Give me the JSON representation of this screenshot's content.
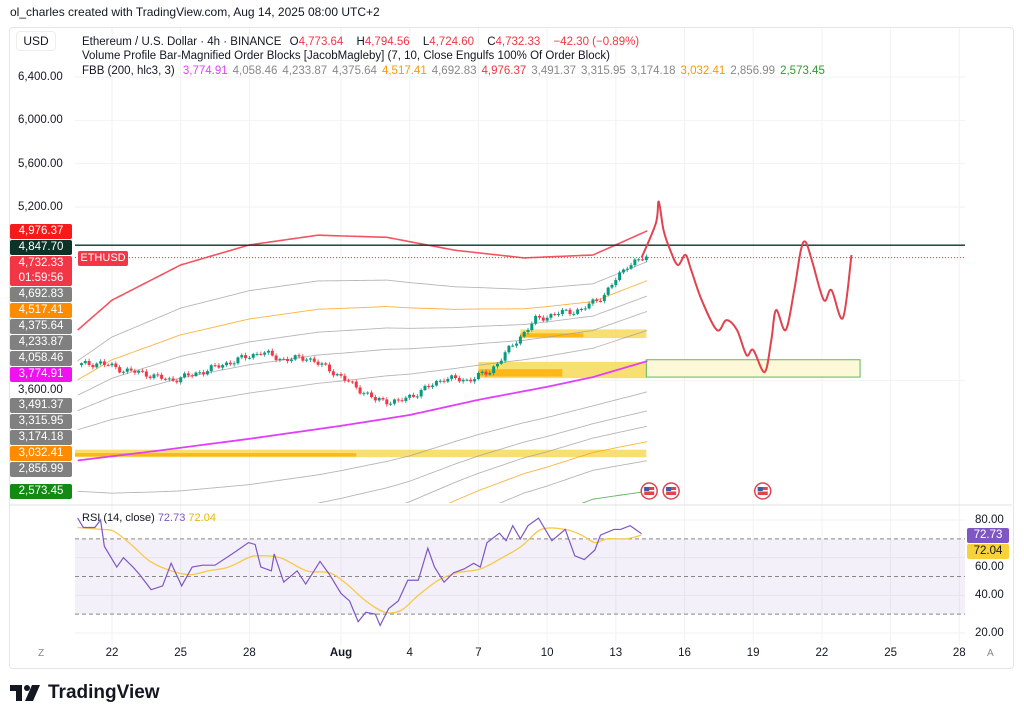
{
  "credit": "ol_charles created with TradingView.com, Aug 14, 2025 08:00 UTC+2",
  "currency": "USD",
  "legend": {
    "symbol": "Ethereum / U.S. Dollar · 4h · BINANCE",
    "o_label": "O",
    "o": "4,773.64",
    "h_label": "H",
    "h": "4,794.56",
    "l_label": "L",
    "l": "4,724.60",
    "c_label": "C",
    "c": "4,732.33",
    "change": "−42.30 (−0.89%)",
    "indicator2": "Volume Profile Bar-Magnified Order Blocks [JacobMagleby] (7, 10, Close Engulfs 100% Of Order Block)",
    "fbb_label": "FBB (200, hlc3, 3)",
    "fbb_values": [
      {
        "v": "3,774.91",
        "color": "#e040fb"
      },
      {
        "v": "4,058.46",
        "color": "#888888"
      },
      {
        "v": "4,233.87",
        "color": "#888888"
      },
      {
        "v": "4,375.64",
        "color": "#888888"
      },
      {
        "v": "4,517.41",
        "color": "#ff9800"
      },
      {
        "v": "4,692.83",
        "color": "#888888"
      },
      {
        "v": "4,976.37",
        "color": "#f23645"
      },
      {
        "v": "3,491.37",
        "color": "#888888"
      },
      {
        "v": "3,315.95",
        "color": "#888888"
      },
      {
        "v": "3,174.18",
        "color": "#888888"
      },
      {
        "v": "3,032.41",
        "color": "#ff9800"
      },
      {
        "v": "2,856.99",
        "color": "#888888"
      },
      {
        "v": "2,573.45",
        "color": "#2e9b2e"
      }
    ]
  },
  "symbol_label": "ETHUSD",
  "countdown": "01:59:56",
  "price_ticks": [
    "6,400.00",
    "6,000.00",
    "5,600.00",
    "5,200.00",
    "3,600.00"
  ],
  "price_tags": [
    {
      "label": "4,976.37",
      "value": 4976.37,
      "bg": "#f71a1a"
    },
    {
      "label": "4,847.70",
      "value": 4847.7,
      "bg": "#0b3327"
    },
    {
      "label": "4,732.33",
      "value": 4732.33,
      "bg": "#f23645",
      "countdown": true
    },
    {
      "label": "4,692.83",
      "value": 4692.83,
      "bg": "#808080"
    },
    {
      "label": "4,517.41",
      "value": 4517.41,
      "bg": "#ff8c00"
    },
    {
      "label": "4,375.64",
      "value": 4375.64,
      "bg": "#808080"
    },
    {
      "label": "4,233.87",
      "value": 4233.87,
      "bg": "#808080"
    },
    {
      "label": "4,058.46",
      "value": 4058.46,
      "bg": "#808080"
    },
    {
      "label": "3,774.91",
      "value": 3774.91,
      "bg": "#f010f0"
    },
    {
      "label": "3,491.37",
      "value": 3491.37,
      "bg": "#808080"
    },
    {
      "label": "3,315.95",
      "value": 3315.95,
      "bg": "#808080"
    },
    {
      "label": "3,174.18",
      "value": 3174.18,
      "bg": "#808080"
    },
    {
      "label": "3,032.41",
      "value": 3032.41,
      "bg": "#ff8c00"
    },
    {
      "label": "2,856.99",
      "value": 2856.99,
      "bg": "#808080"
    },
    {
      "label": "2,573.45",
      "value": 2573.45,
      "bg": "#138a13"
    }
  ],
  "time_axis": {
    "left_button": "Z",
    "right_button": "A",
    "ticks": [
      {
        "label": "22",
        "date": "2025-07-22 00:00"
      },
      {
        "label": "25",
        "date": "2025-07-25 00:00"
      },
      {
        "label": "28",
        "date": "2025-07-28 00:00"
      },
      {
        "label": "Aug",
        "date": "2025-08-01 00:00",
        "bold": true
      },
      {
        "label": "4",
        "date": "2025-08-04 00:00"
      },
      {
        "label": "7",
        "date": "2025-08-07 00:00"
      },
      {
        "label": "10",
        "date": "2025-08-10 00:00"
      },
      {
        "label": "13",
        "date": "2025-08-13 00:00"
      },
      {
        "label": "16",
        "date": "2025-08-16 00:00"
      },
      {
        "label": "19",
        "date": "2025-08-19 00:00"
      },
      {
        "label": "22",
        "date": "2025-08-22 00:00"
      },
      {
        "label": "25",
        "date": "2025-08-25 00:00"
      },
      {
        "label": "28",
        "date": "2025-08-28 00:00"
      }
    ]
  },
  "rsi": {
    "label": "RSI (14, close)",
    "value": "72.73",
    "ma_value": "72.04",
    "ticks": [
      "80.00",
      "60.00",
      "40.00",
      "20.00"
    ],
    "line_color": "#7e57c2",
    "ma_color": "#f7c948"
  },
  "chart_data": [
    {
      "type": "candlestick",
      "title": "Ethereum / U.S. Dollar · 4h · BINANCE",
      "ylim": [
        2500,
        6500
      ],
      "closes": [
        [
          "2025-07-20 12:00",
          3741
        ],
        [
          "2025-07-21 12:00",
          3760
        ],
        [
          "2025-07-22 12:00",
          3695
        ],
        [
          "2025-07-23 12:00",
          3660
        ],
        [
          "2025-07-24 12:00",
          3600
        ],
        [
          "2025-07-25 12:00",
          3650
        ],
        [
          "2025-07-26 12:00",
          3720
        ],
        [
          "2025-07-27 12:00",
          3790
        ],
        [
          "2025-07-28 12:00",
          3860
        ],
        [
          "2025-07-29 12:00",
          3790
        ],
        [
          "2025-07-30 12:00",
          3810
        ],
        [
          "2025-07-31 12:00",
          3700
        ],
        [
          "2025-08-01 12:00",
          3560
        ],
        [
          "2025-08-02 12:00",
          3420
        ],
        [
          "2025-08-03 12:00",
          3400
        ],
        [
          "2025-08-04 12:00",
          3500
        ],
        [
          "2025-08-05 12:00",
          3620
        ],
        [
          "2025-08-06 12:00",
          3600
        ],
        [
          "2025-08-07 12:00",
          3680
        ],
        [
          "2025-08-08 12:00",
          3925
        ],
        [
          "2025-08-09 12:00",
          4160
        ],
        [
          "2025-08-10 12:00",
          4220
        ],
        [
          "2025-08-11 12:00",
          4250
        ],
        [
          "2025-08-12 12:00",
          4390
        ],
        [
          "2025-08-13 12:00",
          4665
        ],
        [
          "2025-08-14 08:00",
          4732.33
        ]
      ],
      "up_color": "#089981",
      "down_color": "#f23645",
      "fbb": {
        "fib_ratios": [
          1,
          0.764,
          0.618,
          0.5,
          0.382,
          0.236,
          -0.236,
          -0.382,
          -0.5,
          -0.618,
          -0.764,
          -1
        ],
        "ratio_colors": {
          "1": "#f23645",
          "0.618": "#ff9800",
          "-0.618": "#ff9800",
          "-1": "#2e9b2e",
          "other": "#9e9e9e",
          "basis": "#e040fb"
        },
        "basis": [
          [
            "2025-07-20 12:00",
            2860
          ],
          [
            "2025-07-24 00:00",
            2950
          ],
          [
            "2025-07-28 00:00",
            3060
          ],
          [
            "2025-08-01 00:00",
            3180
          ],
          [
            "2025-08-04 00:00",
            3280
          ],
          [
            "2025-08-07 00:00",
            3420
          ],
          [
            "2025-08-10 00:00",
            3540
          ],
          [
            "2025-08-12 00:00",
            3630
          ],
          [
            "2025-08-14 08:00",
            3774.91
          ]
        ],
        "upper": [
          [
            "2025-07-20 12:00",
            4064
          ],
          [
            "2025-07-22 00:00",
            4340
          ],
          [
            "2025-07-25 00:00",
            4665
          ],
          [
            "2025-07-28 00:00",
            4850
          ],
          [
            "2025-07-31 00:00",
            4940
          ],
          [
            "2025-08-03 00:00",
            4920
          ],
          [
            "2025-08-06 00:00",
            4800
          ],
          [
            "2025-08-09 00:00",
            4730
          ],
          [
            "2025-08-12 00:00",
            4757
          ],
          [
            "2025-08-13 00:00",
            4850
          ],
          [
            "2025-08-14 08:00",
            4976.37
          ]
        ]
      },
      "horizontal_line": {
        "value": 4847.7,
        "color": "#0b3327"
      },
      "order_blocks": [
        {
          "from": "2025-08-08 20:00",
          "to": "2025-08-14 08:00",
          "top": 4070,
          "bottom": 3990
        },
        {
          "from": "2025-08-07 00:00",
          "to": "2025-08-14 08:00",
          "top": 3770,
          "bottom": 3620
        },
        {
          "from": "2025-07-20 00:00",
          "to": "2025-08-14 08:00",
          "top": 2960,
          "bottom": 2890
        }
      ],
      "target_zone": {
        "from": "2025-08-14 08:00",
        "to": "2025-08-23 16:00",
        "top": 3790,
        "bottom": 3630,
        "border": "#5cb85c",
        "fill": "#fdf8d8"
      },
      "projection": [
        [
          "2025-08-14 03:00",
          4732
        ],
        [
          "2025-08-14 18:00",
          5050
        ],
        [
          "2025-08-14 21:00",
          5250
        ],
        [
          "2025-08-15 02:00",
          4987
        ],
        [
          "2025-08-15 09:00",
          4803
        ],
        [
          "2025-08-15 17:00",
          4665
        ],
        [
          "2025-08-16 01:00",
          4757
        ],
        [
          "2025-08-16 07:00",
          4618
        ],
        [
          "2025-08-16 18:00",
          4341
        ],
        [
          "2025-08-17 10:00",
          4064
        ],
        [
          "2025-08-17 20:00",
          4156
        ],
        [
          "2025-08-18 07:00",
          4064
        ],
        [
          "2025-08-18 17:00",
          3833
        ],
        [
          "2025-08-19 00:00",
          3880
        ],
        [
          "2025-08-19 12:00",
          3676
        ],
        [
          "2025-08-19 19:00",
          3972
        ],
        [
          "2025-08-20 00:00",
          4249
        ],
        [
          "2025-08-20 10:00",
          4064
        ],
        [
          "2025-08-20 19:00",
          4433
        ],
        [
          "2025-08-21 02:00",
          4803
        ],
        [
          "2025-08-21 07:00",
          4876
        ],
        [
          "2025-08-21 14:00",
          4692
        ],
        [
          "2025-08-22 02:00",
          4341
        ],
        [
          "2025-08-22 10:00",
          4433
        ],
        [
          "2025-08-22 22:00",
          4175
        ],
        [
          "2025-08-23 07:00",
          4757
        ]
      ],
      "projection_color": "#e0434f",
      "events": [
        {
          "date": "2025-08-14 11:00",
          "icon": "us-flag"
        },
        {
          "date": "2025-08-15 10:00",
          "icon": "us-flag"
        },
        {
          "date": "2025-08-19 10:00",
          "icon": "us-flag"
        }
      ]
    },
    {
      "type": "line",
      "title": "RSI (14, close)",
      "ylim": [
        18,
        85
      ],
      "bands": {
        "upper": 70,
        "middle": 50,
        "lower": 30
      },
      "series": [
        {
          "name": "RSI",
          "values": [
            [
              "2025-07-20 12:00",
              81
            ],
            [
              "2025-07-20 18:00",
              76
            ],
            [
              "2025-07-21 06:00",
              76
            ],
            [
              "2025-07-21 12:00",
              80
            ],
            [
              "2025-07-21 16:00",
              66
            ],
            [
              "2025-07-22 05:00",
              55
            ],
            [
              "2025-07-22 12:00",
              60
            ],
            [
              "2025-07-22 22:00",
              55
            ],
            [
              "2025-07-23 05:00",
              51
            ],
            [
              "2025-07-23 17:00",
              43
            ],
            [
              "2025-07-24 05:00",
              45
            ],
            [
              "2025-07-24 14:00",
              57
            ],
            [
              "2025-07-25 01:00",
              45
            ],
            [
              "2025-07-25 12:00",
              55
            ],
            [
              "2025-07-25 23:00",
              56
            ],
            [
              "2025-07-26 12:00",
              56
            ],
            [
              "2025-07-27 06:00",
              62
            ],
            [
              "2025-07-27 23:00",
              68
            ],
            [
              "2025-07-28 06:00",
              67
            ],
            [
              "2025-07-28 12:00",
              55
            ],
            [
              "2025-07-28 23:00",
              53
            ],
            [
              "2025-07-29 02:00",
              62
            ],
            [
              "2025-07-29 12:00",
              47
            ],
            [
              "2025-07-30 02:00",
              53
            ],
            [
              "2025-07-30 11:00",
              46
            ],
            [
              "2025-07-31 02:00",
              58
            ],
            [
              "2025-07-31 12:00",
              51
            ],
            [
              "2025-08-01 00:00",
              41
            ],
            [
              "2025-08-01 09:00",
              37
            ],
            [
              "2025-08-01 18:00",
              26
            ],
            [
              "2025-08-02 02:00",
              31
            ],
            [
              "2025-08-02 12:00",
              30
            ],
            [
              "2025-08-02 17:00",
              24
            ],
            [
              "2025-08-03 02:00",
              33
            ],
            [
              "2025-08-03 12:00",
              37
            ],
            [
              "2025-08-03 22:00",
              48
            ],
            [
              "2025-08-04 09:00",
              48
            ],
            [
              "2025-08-04 19:00",
              65
            ],
            [
              "2025-08-05 02:00",
              55
            ],
            [
              "2025-08-05 12:00",
              47
            ],
            [
              "2025-08-05 22:00",
              52
            ],
            [
              "2025-08-06 09:00",
              54
            ],
            [
              "2025-08-06 19:00",
              57
            ],
            [
              "2025-08-07 02:00",
              55
            ],
            [
              "2025-08-07 09:00",
              68
            ],
            [
              "2025-08-07 22:00",
              73
            ],
            [
              "2025-08-08 05:00",
              69
            ],
            [
              "2025-08-08 12:00",
              77
            ],
            [
              "2025-08-08 20:00",
              70
            ],
            [
              "2025-08-09 04:00",
              77
            ],
            [
              "2025-08-09 15:00",
              81
            ],
            [
              "2025-08-10 05:00",
              69
            ],
            [
              "2025-08-10 19:00",
              75
            ],
            [
              "2025-08-11 05:00",
              61
            ],
            [
              "2025-08-11 15:00",
              59
            ],
            [
              "2025-08-12 02:00",
              64
            ],
            [
              "2025-08-12 08:00",
              72
            ],
            [
              "2025-08-12 22:00",
              75
            ],
            [
              "2025-08-13 05:00",
              75
            ],
            [
              "2025-08-13 15:00",
              77
            ],
            [
              "2025-08-14 03:00",
              72.73
            ]
          ]
        },
        {
          "name": "RSI-based MA",
          "values": [
            [
              "2025-07-20 12:00",
              76
            ],
            [
              "2025-07-21 12:00",
              75
            ],
            [
              "2025-07-22 02:00",
              74
            ],
            [
              "2025-07-22 20:00",
              67
            ],
            [
              "2025-07-23 16:00",
              58
            ],
            [
              "2025-07-24 14:00",
              53
            ],
            [
              "2025-07-25 10:00",
              51
            ],
            [
              "2025-07-26 05:00",
              53
            ],
            [
              "2025-07-27 02:00",
              55
            ],
            [
              "2025-07-27 23:00",
              60
            ],
            [
              "2025-07-28 09:00",
              61
            ],
            [
              "2025-07-29 08:00",
              60
            ],
            [
              "2025-07-30 12:00",
              53
            ],
            [
              "2025-07-31 12:00",
              52
            ],
            [
              "2025-08-01 06:00",
              46
            ],
            [
              "2025-08-02 02:00",
              37
            ],
            [
              "2025-08-02 22:00",
              31
            ],
            [
              "2025-08-03 15:00",
              32
            ],
            [
              "2025-08-04 09:00",
              40
            ],
            [
              "2025-08-05 06:00",
              48
            ],
            [
              "2025-08-06 02:00",
              52
            ],
            [
              "2025-08-07 02:00",
              54
            ],
            [
              "2025-08-08 01:00",
              60
            ],
            [
              "2025-08-08 21:00",
              66
            ],
            [
              "2025-08-09 18:00",
              75
            ],
            [
              "2025-08-10 19:00",
              75
            ],
            [
              "2025-08-11 12:00",
              72
            ],
            [
              "2025-08-12 02:00",
              68
            ],
            [
              "2025-08-12 15:00",
              70
            ],
            [
              "2025-08-13 11:00",
              70
            ],
            [
              "2025-08-14 03:00",
              72.04
            ]
          ]
        }
      ]
    }
  ],
  "brand": "TradingView"
}
